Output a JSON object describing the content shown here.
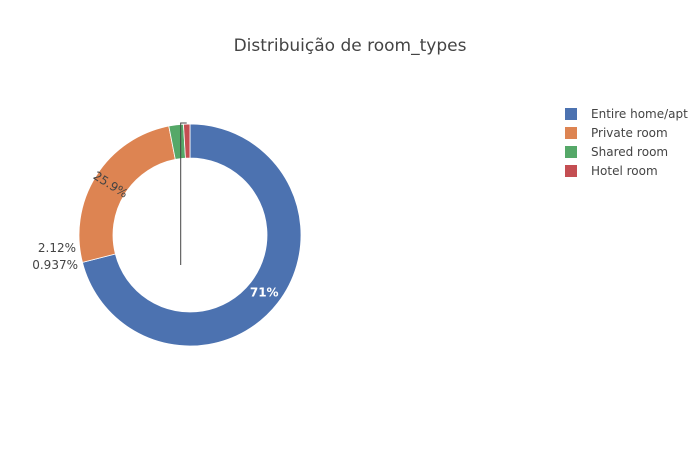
{
  "chart_data": {
    "type": "pie",
    "hole": true,
    "title": "Distribuição de room_types",
    "legend_position": "top-right",
    "slices": [
      {
        "label": "Entire home/apt",
        "value": 71,
        "text": "71%",
        "color": "#4c72b0",
        "text_position": "inside",
        "text_color": "#ffffff"
      },
      {
        "label": "Private room",
        "value": 25.9,
        "text": "25.9%",
        "color": "#dd8452",
        "text_position": "inside",
        "text_color": "#444444"
      },
      {
        "label": "Shared room",
        "value": 2.12,
        "text": "2.12%",
        "color": "#55a868",
        "text_position": "outside",
        "text_color": "#444444"
      },
      {
        "label": "Hotel room",
        "value": 0.937,
        "text": "0.937%",
        "color": "#c44e52",
        "text_position": "outside",
        "text_color": "#444444"
      }
    ]
  }
}
